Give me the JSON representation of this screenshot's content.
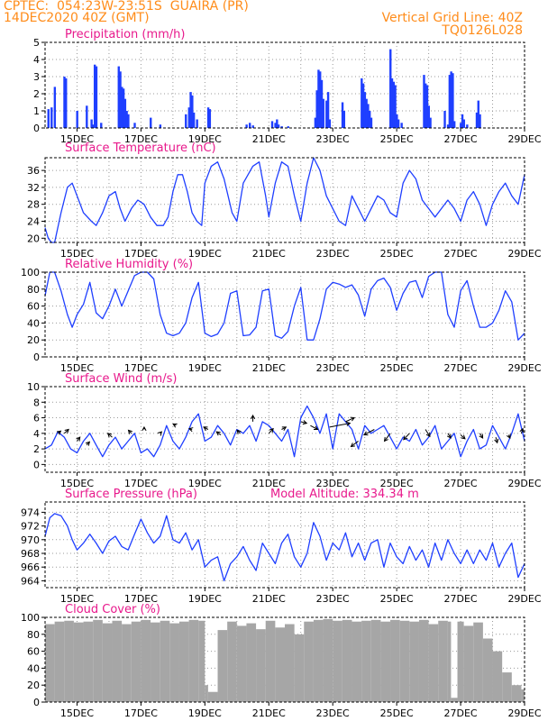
{
  "header": {
    "left_line1": "CPTEC:  054:23W-23:51S  GUAIRA (PR)",
    "left_line2": "14DEC2020 40Z (GMT)",
    "right_line1": "Vertical Grid Line: 40Z",
    "right_line2": "TQ0126L028"
  },
  "x_axis": {
    "tick_labels": [
      "15DEC",
      "17DEC",
      "19DEC",
      "21DEC",
      "23DEC",
      "25DEC",
      "27DEC",
      "29DEC"
    ],
    "tick_days": [
      15,
      17,
      19,
      21,
      23,
      25,
      27,
      29
    ],
    "start_day": 14,
    "end_day": 29
  },
  "colors": {
    "title": "#e8198c",
    "header": "#ff8c1a",
    "series": "#1f3fff",
    "cloud": "#a6a6a6",
    "wind_arrow": "#000000"
  },
  "panels": {
    "precip": {
      "title": "Precipitation (mm/h)",
      "y_ticks": [
        "0",
        "1",
        "2",
        "3",
        "4",
        "5"
      ],
      "ylim": [
        0,
        5
      ]
    },
    "temp": {
      "title": "Surface Temperature (nC)",
      "y_ticks": [
        "20",
        "24",
        "28",
        "32",
        "36"
      ],
      "ylim": [
        19,
        39
      ]
    },
    "rh": {
      "title": "Relative Humidity (%)",
      "y_ticks": [
        "0",
        "20",
        "40",
        "60",
        "80",
        "100"
      ],
      "ylim": [
        0,
        100
      ]
    },
    "wind": {
      "title": "Surface Wind (m/s)",
      "y_ticks": [
        "0",
        "2",
        "4",
        "6",
        "8",
        "10"
      ],
      "ylim": [
        -1,
        10
      ]
    },
    "pressure": {
      "title": "Surface Pressure (hPa)",
      "extra": "Model Altitude: 334.34 m",
      "y_ticks": [
        "964",
        "966",
        "968",
        "970",
        "972",
        "974"
      ],
      "ylim": [
        963,
        975.5
      ]
    },
    "cloud": {
      "title": "Cloud Cover (%)",
      "y_ticks": [
        "0",
        "20",
        "40",
        "60",
        "80",
        "100"
      ],
      "ylim": [
        0,
        100
      ]
    }
  },
  "chart_data": [
    {
      "type": "bar",
      "title": "Precipitation (mm/h)",
      "ylim": [
        0,
        5
      ],
      "x": [
        14.1,
        14.2,
        14.3,
        14.6,
        14.65,
        15.0,
        15.3,
        15.45,
        15.5,
        15.55,
        15.6,
        15.75,
        16.3,
        16.35,
        16.4,
        16.45,
        16.5,
        16.55,
        16.6,
        16.8,
        17.3,
        17.6,
        18.4,
        18.5,
        18.55,
        18.6,
        18.65,
        18.75,
        19.1,
        19.15,
        20.3,
        20.4,
        20.5,
        21.1,
        21.2,
        21.25,
        21.3,
        21.4,
        21.6,
        22.45,
        22.5,
        22.55,
        22.6,
        22.65,
        22.7,
        22.8,
        22.85,
        22.9,
        23.3,
        23.35,
        23.9,
        23.95,
        24.0,
        24.05,
        24.1,
        24.15,
        24.2,
        24.8,
        24.85,
        24.9,
        24.95,
        25.0,
        25.05,
        25.15,
        25.85,
        25.9,
        25.95,
        26.0,
        26.05,
        26.5,
        26.6,
        26.65,
        26.7,
        26.75,
        26.8,
        27.0,
        27.05,
        27.1,
        27.2,
        27.5,
        27.55,
        27.6
      ],
      "values": [
        1.1,
        1.2,
        2.4,
        3.0,
        2.9,
        1.0,
        1.3,
        0.5,
        0.2,
        3.7,
        3.6,
        0.3,
        3.6,
        3.3,
        2.4,
        2.3,
        1.7,
        1.0,
        0.8,
        0.3,
        0.6,
        0.2,
        0.8,
        1.2,
        2.1,
        1.9,
        0.9,
        0.5,
        1.2,
        1.1,
        0.2,
        0.3,
        0.15,
        0.4,
        0.3,
        0.5,
        0.2,
        0.1,
        0.1,
        0.6,
        2.2,
        3.4,
        3.3,
        2.8,
        1.7,
        1.6,
        2.1,
        0.5,
        1.5,
        1.0,
        2.9,
        2.6,
        2.1,
        1.7,
        1.4,
        1.0,
        0.6,
        4.6,
        2.9,
        2.7,
        2.5,
        0.8,
        0.5,
        0.3,
        3.1,
        2.6,
        2.5,
        1.3,
        0.6,
        1.0,
        0.2,
        3.1,
        3.3,
        3.2,
        0.4,
        0.3,
        0.8,
        0.5,
        0.2,
        0.9,
        1.6,
        0.8
      ]
    },
    {
      "type": "line",
      "title": "Surface Temperature (nC)",
      "ylim": [
        19,
        39
      ],
      "x": [
        14.0,
        14.1,
        14.2,
        14.3,
        14.5,
        14.7,
        14.85,
        15.0,
        15.2,
        15.45,
        15.6,
        15.8,
        16.0,
        16.2,
        16.35,
        16.5,
        16.7,
        16.9,
        17.1,
        17.3,
        17.5,
        17.7,
        17.85,
        18.0,
        18.15,
        18.3,
        18.45,
        18.6,
        18.75,
        18.9,
        19.0,
        19.2,
        19.4,
        19.6,
        19.85,
        20.0,
        20.2,
        20.5,
        20.7,
        20.9,
        21.0,
        21.2,
        21.4,
        21.6,
        21.8,
        22.0,
        22.2,
        22.4,
        22.6,
        22.8,
        23.0,
        23.2,
        23.4,
        23.6,
        23.8,
        24.0,
        24.2,
        24.4,
        24.6,
        24.8,
        25.0,
        25.2,
        25.4,
        25.6,
        25.8,
        26.0,
        26.2,
        26.4,
        26.6,
        26.8,
        27.0,
        27.2,
        27.4,
        27.6,
        27.8,
        28.0,
        28.2,
        28.4,
        28.6,
        28.8,
        29.0
      ],
      "values": [
        22.5,
        20,
        19,
        19,
        26,
        32,
        33,
        30,
        26,
        24,
        23,
        26,
        30,
        31,
        27,
        24,
        27,
        29,
        28,
        25,
        23,
        23,
        25,
        31,
        35,
        35,
        31,
        26,
        24,
        23,
        33,
        37,
        38,
        34,
        26,
        24,
        33,
        37,
        38,
        30,
        25,
        33,
        38,
        37,
        30,
        24,
        33,
        39,
        36,
        30,
        27,
        24,
        23,
        30,
        27,
        24,
        27,
        30,
        29,
        26,
        25,
        33,
        36,
        34,
        29,
        27,
        25,
        27,
        29,
        27,
        24,
        29,
        31,
        28,
        23,
        28,
        31,
        33,
        30,
        28,
        35
      ]
    },
    {
      "type": "line",
      "title": "Relative Humidity (%)",
      "ylim": [
        0,
        100
      ],
      "x": [
        14.0,
        14.15,
        14.3,
        14.5,
        14.7,
        14.85,
        15.0,
        15.2,
        15.4,
        15.6,
        15.8,
        16.0,
        16.2,
        16.4,
        16.6,
        16.8,
        17.0,
        17.2,
        17.4,
        17.6,
        17.8,
        18.0,
        18.2,
        18.4,
        18.6,
        18.8,
        19.0,
        19.2,
        19.4,
        19.6,
        19.8,
        20.0,
        20.2,
        20.4,
        20.6,
        20.8,
        21.0,
        21.2,
        21.4,
        21.6,
        21.8,
        22.0,
        22.2,
        22.4,
        22.6,
        22.8,
        23.0,
        23.2,
        23.4,
        23.6,
        23.8,
        24.0,
        24.2,
        24.4,
        24.6,
        24.8,
        25.0,
        25.2,
        25.4,
        25.6,
        25.8,
        26.0,
        26.2,
        26.4,
        26.6,
        26.8,
        27.0,
        27.2,
        27.4,
        27.6,
        27.8,
        28.0,
        28.2,
        28.4,
        28.6,
        28.8,
        29.0
      ],
      "values": [
        72,
        100,
        100,
        78,
        50,
        35,
        50,
        62,
        88,
        52,
        45,
        60,
        80,
        60,
        78,
        96,
        100,
        100,
        92,
        50,
        28,
        25,
        28,
        40,
        70,
        88,
        28,
        24,
        27,
        40,
        75,
        78,
        25,
        26,
        35,
        78,
        80,
        25,
        22,
        30,
        60,
        82,
        20,
        20,
        45,
        80,
        88,
        86,
        82,
        85,
        73,
        48,
        80,
        90,
        93,
        82,
        55,
        75,
        88,
        90,
        70,
        95,
        100,
        100,
        50,
        35,
        78,
        90,
        60,
        35,
        35,
        40,
        55,
        78,
        65,
        20,
        28
      ]
    },
    {
      "type": "line",
      "title": "Surface Wind (m/s)",
      "ylim": [
        -1,
        10
      ],
      "x": [
        14.0,
        14.2,
        14.4,
        14.6,
        14.8,
        15.0,
        15.2,
        15.4,
        15.6,
        15.8,
        16.0,
        16.2,
        16.4,
        16.6,
        16.8,
        17.0,
        17.2,
        17.4,
        17.6,
        17.8,
        18.0,
        18.2,
        18.4,
        18.6,
        18.8,
        19.0,
        19.2,
        19.4,
        19.6,
        19.8,
        20.0,
        20.2,
        20.4,
        20.6,
        20.8,
        21.0,
        21.2,
        21.4,
        21.6,
        21.8,
        22.0,
        22.2,
        22.4,
        22.6,
        22.8,
        23.0,
        23.2,
        23.4,
        23.6,
        23.8,
        24.0,
        24.2,
        24.4,
        24.6,
        24.8,
        25.0,
        25.2,
        25.4,
        25.6,
        25.8,
        26.0,
        26.2,
        26.4,
        26.6,
        26.8,
        27.0,
        27.2,
        27.4,
        27.6,
        27.8,
        28.0,
        28.2,
        28.4,
        28.6,
        28.8,
        29.0
      ],
      "values": [
        2.0,
        2.5,
        4.2,
        3.5,
        2.0,
        1.5,
        3.0,
        4.0,
        2.5,
        1.0,
        2.5,
        3.5,
        2.0,
        3.0,
        4.0,
        1.5,
        2.0,
        1.0,
        2.5,
        5.0,
        3.0,
        2.0,
        3.5,
        5.5,
        6.5,
        3.0,
        3.5,
        5.0,
        4.0,
        2.5,
        4.5,
        4.0,
        5.0,
        3.0,
        5.5,
        5.0,
        4.0,
        3.0,
        4.5,
        1.0,
        6.0,
        7.5,
        6.0,
        4.0,
        6.5,
        2.0,
        6.5,
        5.5,
        4.5,
        2.0,
        5.0,
        4.0,
        4.5,
        5.0,
        3.5,
        2.0,
        3.5,
        3.0,
        4.5,
        2.5,
        3.5,
        5.0,
        2.0,
        3.0,
        4.0,
        1.0,
        3.0,
        4.5,
        2.0,
        2.5,
        5.0,
        3.5,
        2.0,
        4.0,
        6.5,
        3.0
      ]
    },
    {
      "type": "line",
      "title": "Surface Pressure (hPa)",
      "ylim": [
        963,
        975.5
      ],
      "x": [
        14.0,
        14.15,
        14.3,
        14.5,
        14.7,
        14.85,
        15.0,
        15.2,
        15.4,
        15.6,
        15.8,
        16.0,
        16.2,
        16.4,
        16.6,
        16.8,
        17.0,
        17.2,
        17.4,
        17.6,
        17.8,
        18.0,
        18.2,
        18.4,
        18.6,
        18.8,
        19.0,
        19.2,
        19.4,
        19.6,
        19.8,
        20.0,
        20.2,
        20.4,
        20.6,
        20.8,
        21.0,
        21.2,
        21.4,
        21.6,
        21.8,
        22.0,
        22.2,
        22.4,
        22.6,
        22.8,
        23.0,
        23.2,
        23.4,
        23.6,
        23.8,
        24.0,
        24.2,
        24.4,
        24.6,
        24.8,
        25.0,
        25.2,
        25.4,
        25.6,
        25.8,
        26.0,
        26.2,
        26.4,
        26.6,
        26.8,
        27.0,
        27.2,
        27.4,
        27.6,
        27.8,
        28.0,
        28.2,
        28.4,
        28.6,
        28.8,
        29.0
      ],
      "values": [
        970.5,
        973.2,
        973.8,
        973.5,
        972.0,
        970.0,
        968.5,
        969.5,
        970.8,
        969.5,
        968.0,
        969.8,
        970.5,
        969.0,
        968.5,
        970.8,
        973.0,
        971.0,
        969.5,
        970.5,
        973.5,
        970.0,
        969.5,
        971.0,
        968.5,
        970.0,
        966.0,
        967.0,
        967.5,
        964.0,
        966.5,
        967.5,
        969.0,
        967.0,
        965.5,
        969.5,
        968.0,
        966.5,
        969.5,
        970.8,
        967.5,
        966.0,
        968.0,
        972.5,
        970.5,
        967.0,
        969.5,
        968.5,
        971.0,
        967.5,
        969.5,
        967.0,
        969.5,
        970.0,
        966.0,
        969.5,
        967.5,
        966.5,
        969.0,
        967.0,
        968.5,
        966.0,
        969.5,
        967.0,
        970.0,
        968.0,
        966.5,
        968.5,
        966.5,
        968.5,
        967.0,
        969.5,
        966.0,
        968.0,
        969.5,
        964.5,
        966.5
      ]
    },
    {
      "type": "area",
      "title": "Cloud Cover (%)",
      "ylim": [
        0,
        100
      ],
      "x": [
        14.0,
        14.3,
        14.6,
        14.9,
        15.2,
        15.5,
        15.8,
        16.1,
        16.4,
        16.7,
        17.0,
        17.3,
        17.6,
        17.9,
        18.2,
        18.5,
        18.8,
        19.0,
        19.1,
        19.4,
        19.7,
        20.0,
        20.3,
        20.6,
        20.9,
        21.2,
        21.5,
        21.8,
        22.1,
        22.4,
        22.7,
        23.0,
        23.3,
        23.6,
        23.9,
        24.2,
        24.5,
        24.8,
        25.1,
        25.4,
        25.7,
        26.0,
        26.3,
        26.6,
        26.7,
        26.9,
        27.1,
        27.4,
        27.7,
        28.0,
        28.3,
        28.6,
        28.9,
        29.0
      ],
      "values": [
        92,
        95,
        96,
        94,
        95,
        97,
        93,
        96,
        92,
        95,
        97,
        94,
        96,
        93,
        95,
        97,
        96,
        20,
        12,
        85,
        95,
        90,
        93,
        86,
        96,
        88,
        92,
        80,
        95,
        97,
        98,
        96,
        97,
        95,
        96,
        97,
        95,
        97,
        96,
        95,
        97,
        92,
        96,
        95,
        5,
        95,
        90,
        94,
        75,
        60,
        35,
        20,
        15,
        18
      ]
    }
  ],
  "wind_arrows": {
    "x": [
      14.4,
      14.6,
      15.0,
      15.3,
      16.1,
      16.7,
      17.1,
      17.6,
      18.1,
      18.6,
      19.1,
      19.5,
      20.1,
      20.5,
      21.0,
      21.4,
      22.0,
      22.3,
      22.9,
      23.4,
      23.8,
      24.3,
      24.8,
      25.4,
      25.9,
      26.6,
      27.0,
      27.6,
      28.1,
      28.5,
      28.9
    ],
    "dx": [
      0.2,
      0.3,
      0.2,
      0.2,
      -0.3,
      -0.2,
      0.0,
      0.1,
      -0.2,
      -0.2,
      -0.3,
      -0.3,
      -0.2,
      0.0,
      0.3,
      0.3,
      0.4,
      0.5,
      1.4,
      0.6,
      -0.5,
      -0.7,
      -0.4,
      -0.4,
      0.3,
      0.2,
      0.3,
      0.2,
      0.1,
      0.1,
      0.1
    ],
    "dy": [
      0.3,
      0.5,
      0.5,
      0.4,
      0.5,
      0.4,
      0.3,
      0.2,
      0.2,
      0.1,
      0.3,
      0.4,
      0.4,
      0.8,
      0.6,
      0.3,
      -0.2,
      -0.5,
      0.5,
      0.5,
      -0.7,
      -0.7,
      -1.0,
      -0.8,
      -0.9,
      -0.6,
      -0.5,
      -0.6,
      -0.7,
      -0.4,
      0.6
    ],
    "base_y": [
      4.0,
      4.0,
      3.0,
      2.5,
      3.5,
      4.0,
      4.5,
      4.0,
      5.0,
      4.5,
      4.5,
      3.8,
      4.0,
      5.5,
      4.0,
      4.5,
      5.5,
      5.0,
      4.8,
      5.5,
      3.0,
      4.5,
      4.0,
      4.0,
      4.5,
      4.0,
      3.8,
      4.0,
      3.5,
      3.8,
      4.0
    ]
  }
}
